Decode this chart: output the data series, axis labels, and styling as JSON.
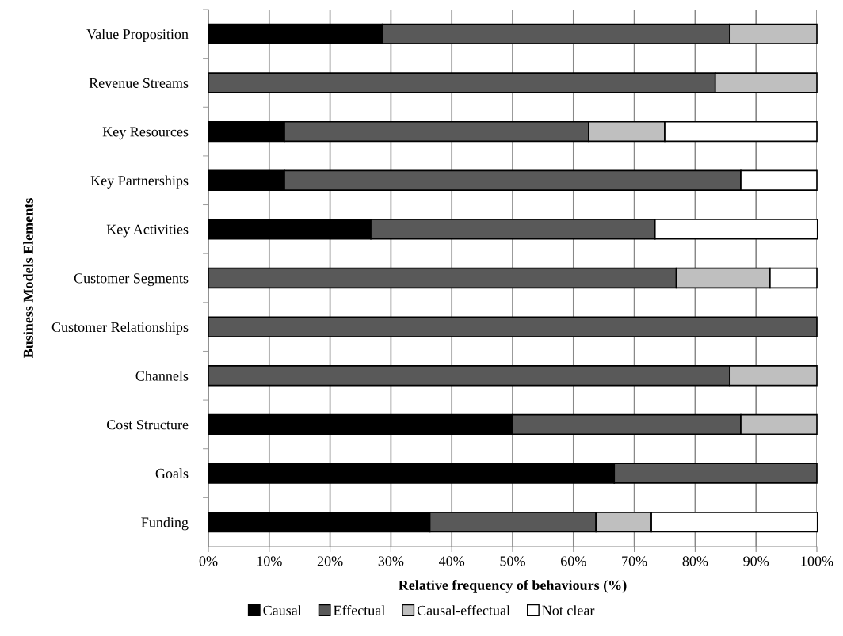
{
  "chart_data": {
    "type": "bar",
    "orientation": "horizontal",
    "stacked": true,
    "xlabel": "Relative frequency of behaviours (%)",
    "ylabel": "Business Models Elements",
    "categories": [
      "Value Proposition",
      "Revenue Streams",
      "Key Resources",
      "Key Partnerships",
      "Key Activities",
      "Customer Segments",
      "Customer Relationships",
      "Channels",
      "Cost Structure",
      "Goals",
      "Funding"
    ],
    "series": [
      {
        "name": "Causal",
        "color": "#000000",
        "values": [
          28.6,
          0,
          12.5,
          12.5,
          26.7,
          0,
          0,
          0,
          50,
          66.7,
          36.4
        ]
      },
      {
        "name": "Effectual",
        "color": "#595959",
        "values": [
          57.1,
          83.3,
          50,
          75,
          46.7,
          76.9,
          100,
          85.7,
          37.5,
          33.3,
          27.3
        ]
      },
      {
        "name": "Causal-effectual",
        "color": "#bfbfbf",
        "values": [
          14.3,
          16.7,
          12.5,
          0,
          0,
          15.4,
          0,
          14.3,
          12.5,
          0,
          9.1
        ]
      },
      {
        "name": "Not clear",
        "color": "#ffffff",
        "values": [
          0,
          0,
          25,
          12.5,
          26.7,
          7.7,
          0,
          0,
          0,
          0,
          27.3
        ]
      }
    ],
    "xlim": [
      0,
      100
    ],
    "xticks": [
      {
        "value": 0,
        "label": "0%"
      },
      {
        "value": 10,
        "label": "10%"
      },
      {
        "value": 20,
        "label": "20%"
      },
      {
        "value": 30,
        "label": "30%"
      },
      {
        "value": 40,
        "label": "40%"
      },
      {
        "value": 50,
        "label": "50%"
      },
      {
        "value": 60,
        "label": "60%"
      },
      {
        "value": 70,
        "label": "70%"
      },
      {
        "value": 80,
        "label": "80%"
      },
      {
        "value": 90,
        "label": "90%"
      },
      {
        "value": 100,
        "label": "100%"
      }
    ],
    "grid": "x",
    "legend": "bottom"
  }
}
